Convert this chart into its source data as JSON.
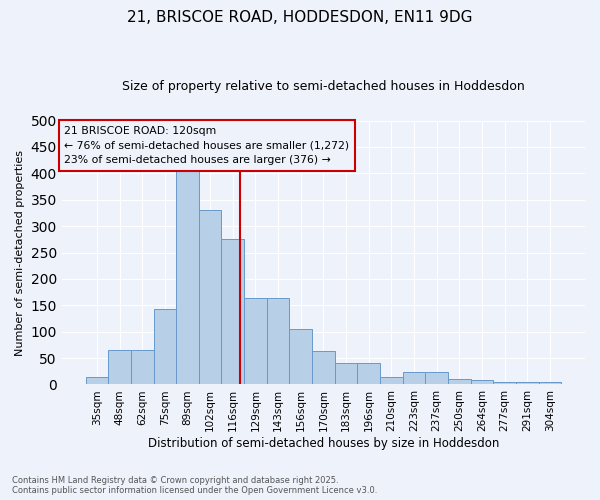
{
  "title1": "21, BRISCOE ROAD, HODDESDON, EN11 9DG",
  "title2": "Size of property relative to semi-detached houses in Hoddesdon",
  "xlabel": "Distribution of semi-detached houses by size in Hoddesdon",
  "ylabel": "Number of semi-detached properties",
  "categories": [
    "35sqm",
    "48sqm",
    "62sqm",
    "75sqm",
    "89sqm",
    "102sqm",
    "116sqm",
    "129sqm",
    "143sqm",
    "156sqm",
    "170sqm",
    "183sqm",
    "196sqm",
    "210sqm",
    "223sqm",
    "237sqm",
    "250sqm",
    "264sqm",
    "277sqm",
    "291sqm",
    "304sqm"
  ],
  "bar_values": [
    15,
    65,
    65,
    143,
    415,
    330,
    275,
    163,
    163,
    105,
    63,
    40,
    40,
    15,
    24,
    24,
    10,
    8,
    5,
    4,
    5
  ],
  "bar_color": "#b8cfe8",
  "bar_edge_color": "#6699cc",
  "line_color": "#cc0000",
  "bg_color": "#eef2fb",
  "grid_color": "#ffffff",
  "footer1": "Contains HM Land Registry data © Crown copyright and database right 2025.",
  "footer2": "Contains public sector information licensed under the Open Government Licence v3.0.",
  "annotation_box_color": "#cc0000",
  "ann_line1": "21 BRISCOE ROAD: 120sqm",
  "ann_line2": "← 76% of semi-detached houses are smaller (1,272)",
  "ann_line3": "23% of semi-detached houses are larger (376) →",
  "ylim_max": 500,
  "yticks": [
    0,
    50,
    100,
    150,
    200,
    250,
    300,
    350,
    400,
    450,
    500
  ],
  "red_line_x": 6.31
}
